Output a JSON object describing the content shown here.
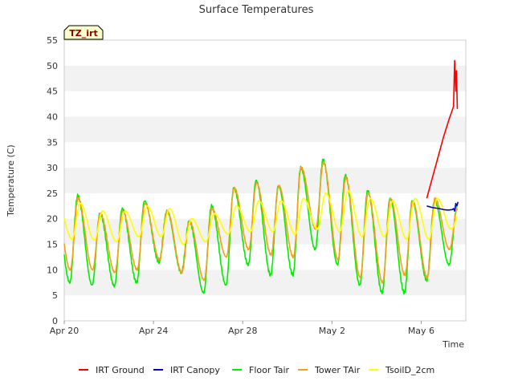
{
  "chart_data": {
    "type": "line",
    "title": "Surface Temperatures",
    "xlabel": "Time",
    "ylabel": "Temperature (C)",
    "badge": "TZ_irt",
    "ylim": [
      0,
      55
    ],
    "yticks": [
      0,
      5,
      10,
      15,
      20,
      25,
      30,
      35,
      40,
      45,
      50,
      55
    ],
    "xlim": [
      "2023-04-20",
      "2023-05-08"
    ],
    "xticks": [
      {
        "day": 0,
        "label": "Apr 20"
      },
      {
        "day": 4,
        "label": "Apr 24"
      },
      {
        "day": 8,
        "label": "Apr 28"
      },
      {
        "day": 12,
        "label": "May 2"
      },
      {
        "day": 16,
        "label": "May 6"
      }
    ],
    "grid": "alternating horizontal bands",
    "legend_position": "bottom",
    "series": [
      {
        "name": "IRT Ground",
        "color": "#ff0000",
        "points": [
          [
            16.25,
            24.0
          ],
          [
            16.5,
            28.0
          ],
          [
            16.75,
            32.0
          ],
          [
            17.0,
            36.0
          ],
          [
            17.25,
            39.5
          ],
          [
            17.45,
            42.0
          ],
          [
            17.5,
            51.0
          ],
          [
            17.55,
            45.0
          ],
          [
            17.58,
            49.0
          ],
          [
            17.62,
            41.5
          ]
        ]
      },
      {
        "name": "IRT Canopy",
        "color": "#0000cc",
        "points": [
          [
            16.25,
            22.5
          ],
          [
            16.5,
            22.2
          ],
          [
            16.8,
            22.0
          ],
          [
            17.0,
            21.8
          ],
          [
            17.2,
            21.7
          ],
          [
            17.4,
            21.8
          ],
          [
            17.45,
            22.0
          ],
          [
            17.5,
            21.5
          ],
          [
            17.55,
            23.0
          ],
          [
            17.6,
            22.5
          ],
          [
            17.65,
            23.3
          ]
        ]
      },
      {
        "name": "Floor Tair",
        "color": "#00ee00",
        "daily": [
          {
            "min": 7.5,
            "max": 24.5
          },
          {
            "min": 7.0,
            "max": 21.0
          },
          {
            "min": 6.8,
            "max": 22.0
          },
          {
            "min": 7.5,
            "max": 23.5
          },
          {
            "min": 11.5,
            "max": 21.5
          },
          {
            "min": 9.5,
            "max": 19.5
          },
          {
            "min": 5.5,
            "max": 22.5
          },
          {
            "min": 7.0,
            "max": 26.0
          },
          {
            "min": 11.0,
            "max": 27.5
          },
          {
            "min": 9.0,
            "max": 26.5
          },
          {
            "min": 9.0,
            "max": 30.0
          },
          {
            "min": 14.0,
            "max": 31.5
          },
          {
            "min": 11.0,
            "max": 28.5
          },
          {
            "min": 7.0,
            "max": 25.5
          },
          {
            "min": 5.5,
            "max": 24.0
          },
          {
            "min": 5.5,
            "max": 23.5
          },
          {
            "min": 8.0,
            "max": 23.5
          },
          {
            "min": 11.0,
            "max": 22.0
          }
        ]
      },
      {
        "name": "Tower TAir",
        "color": "#f5a01a",
        "daily": [
          {
            "min": 10.0,
            "max": 24.0
          },
          {
            "min": 10.0,
            "max": 21.0
          },
          {
            "min": 9.5,
            "max": 21.5
          },
          {
            "min": 10.0,
            "max": 23.0
          },
          {
            "min": 12.0,
            "max": 21.5
          },
          {
            "min": 9.5,
            "max": 19.5
          },
          {
            "min": 8.0,
            "max": 22.0
          },
          {
            "min": 12.5,
            "max": 26.0
          },
          {
            "min": 14.0,
            "max": 27.0
          },
          {
            "min": 13.0,
            "max": 26.5
          },
          {
            "min": 12.5,
            "max": 30.0
          },
          {
            "min": 18.0,
            "max": 31.0
          },
          {
            "min": 12.0,
            "max": 28.0
          },
          {
            "min": 8.5,
            "max": 25.0
          },
          {
            "min": 7.5,
            "max": 24.0
          },
          {
            "min": 9.0,
            "max": 23.5
          },
          {
            "min": 8.5,
            "max": 24.0
          },
          {
            "min": 14.0,
            "max": 22.0
          }
        ]
      },
      {
        "name": "TsoilD_2cm",
        "color": "#ffff00",
        "daily": [
          {
            "min": 16.0,
            "max": 23.0
          },
          {
            "min": 15.8,
            "max": 21.5
          },
          {
            "min": 15.5,
            "max": 21.5
          },
          {
            "min": 16.5,
            "max": 22.5
          },
          {
            "min": 16.5,
            "max": 22.0
          },
          {
            "min": 15.0,
            "max": 20.0
          },
          {
            "min": 15.5,
            "max": 21.0
          },
          {
            "min": 17.0,
            "max": 22.5
          },
          {
            "min": 17.5,
            "max": 23.5
          },
          {
            "min": 17.5,
            "max": 23.5
          },
          {
            "min": 17.0,
            "max": 24.0
          },
          {
            "min": 18.0,
            "max": 25.0
          },
          {
            "min": 17.5,
            "max": 25.5
          },
          {
            "min": 16.5,
            "max": 24.0
          },
          {
            "min": 16.5,
            "max": 23.5
          },
          {
            "min": 16.0,
            "max": 24.0
          },
          {
            "min": 16.0,
            "max": 24.0
          },
          {
            "min": 18.0,
            "max": 21.0
          }
        ]
      }
    ]
  }
}
